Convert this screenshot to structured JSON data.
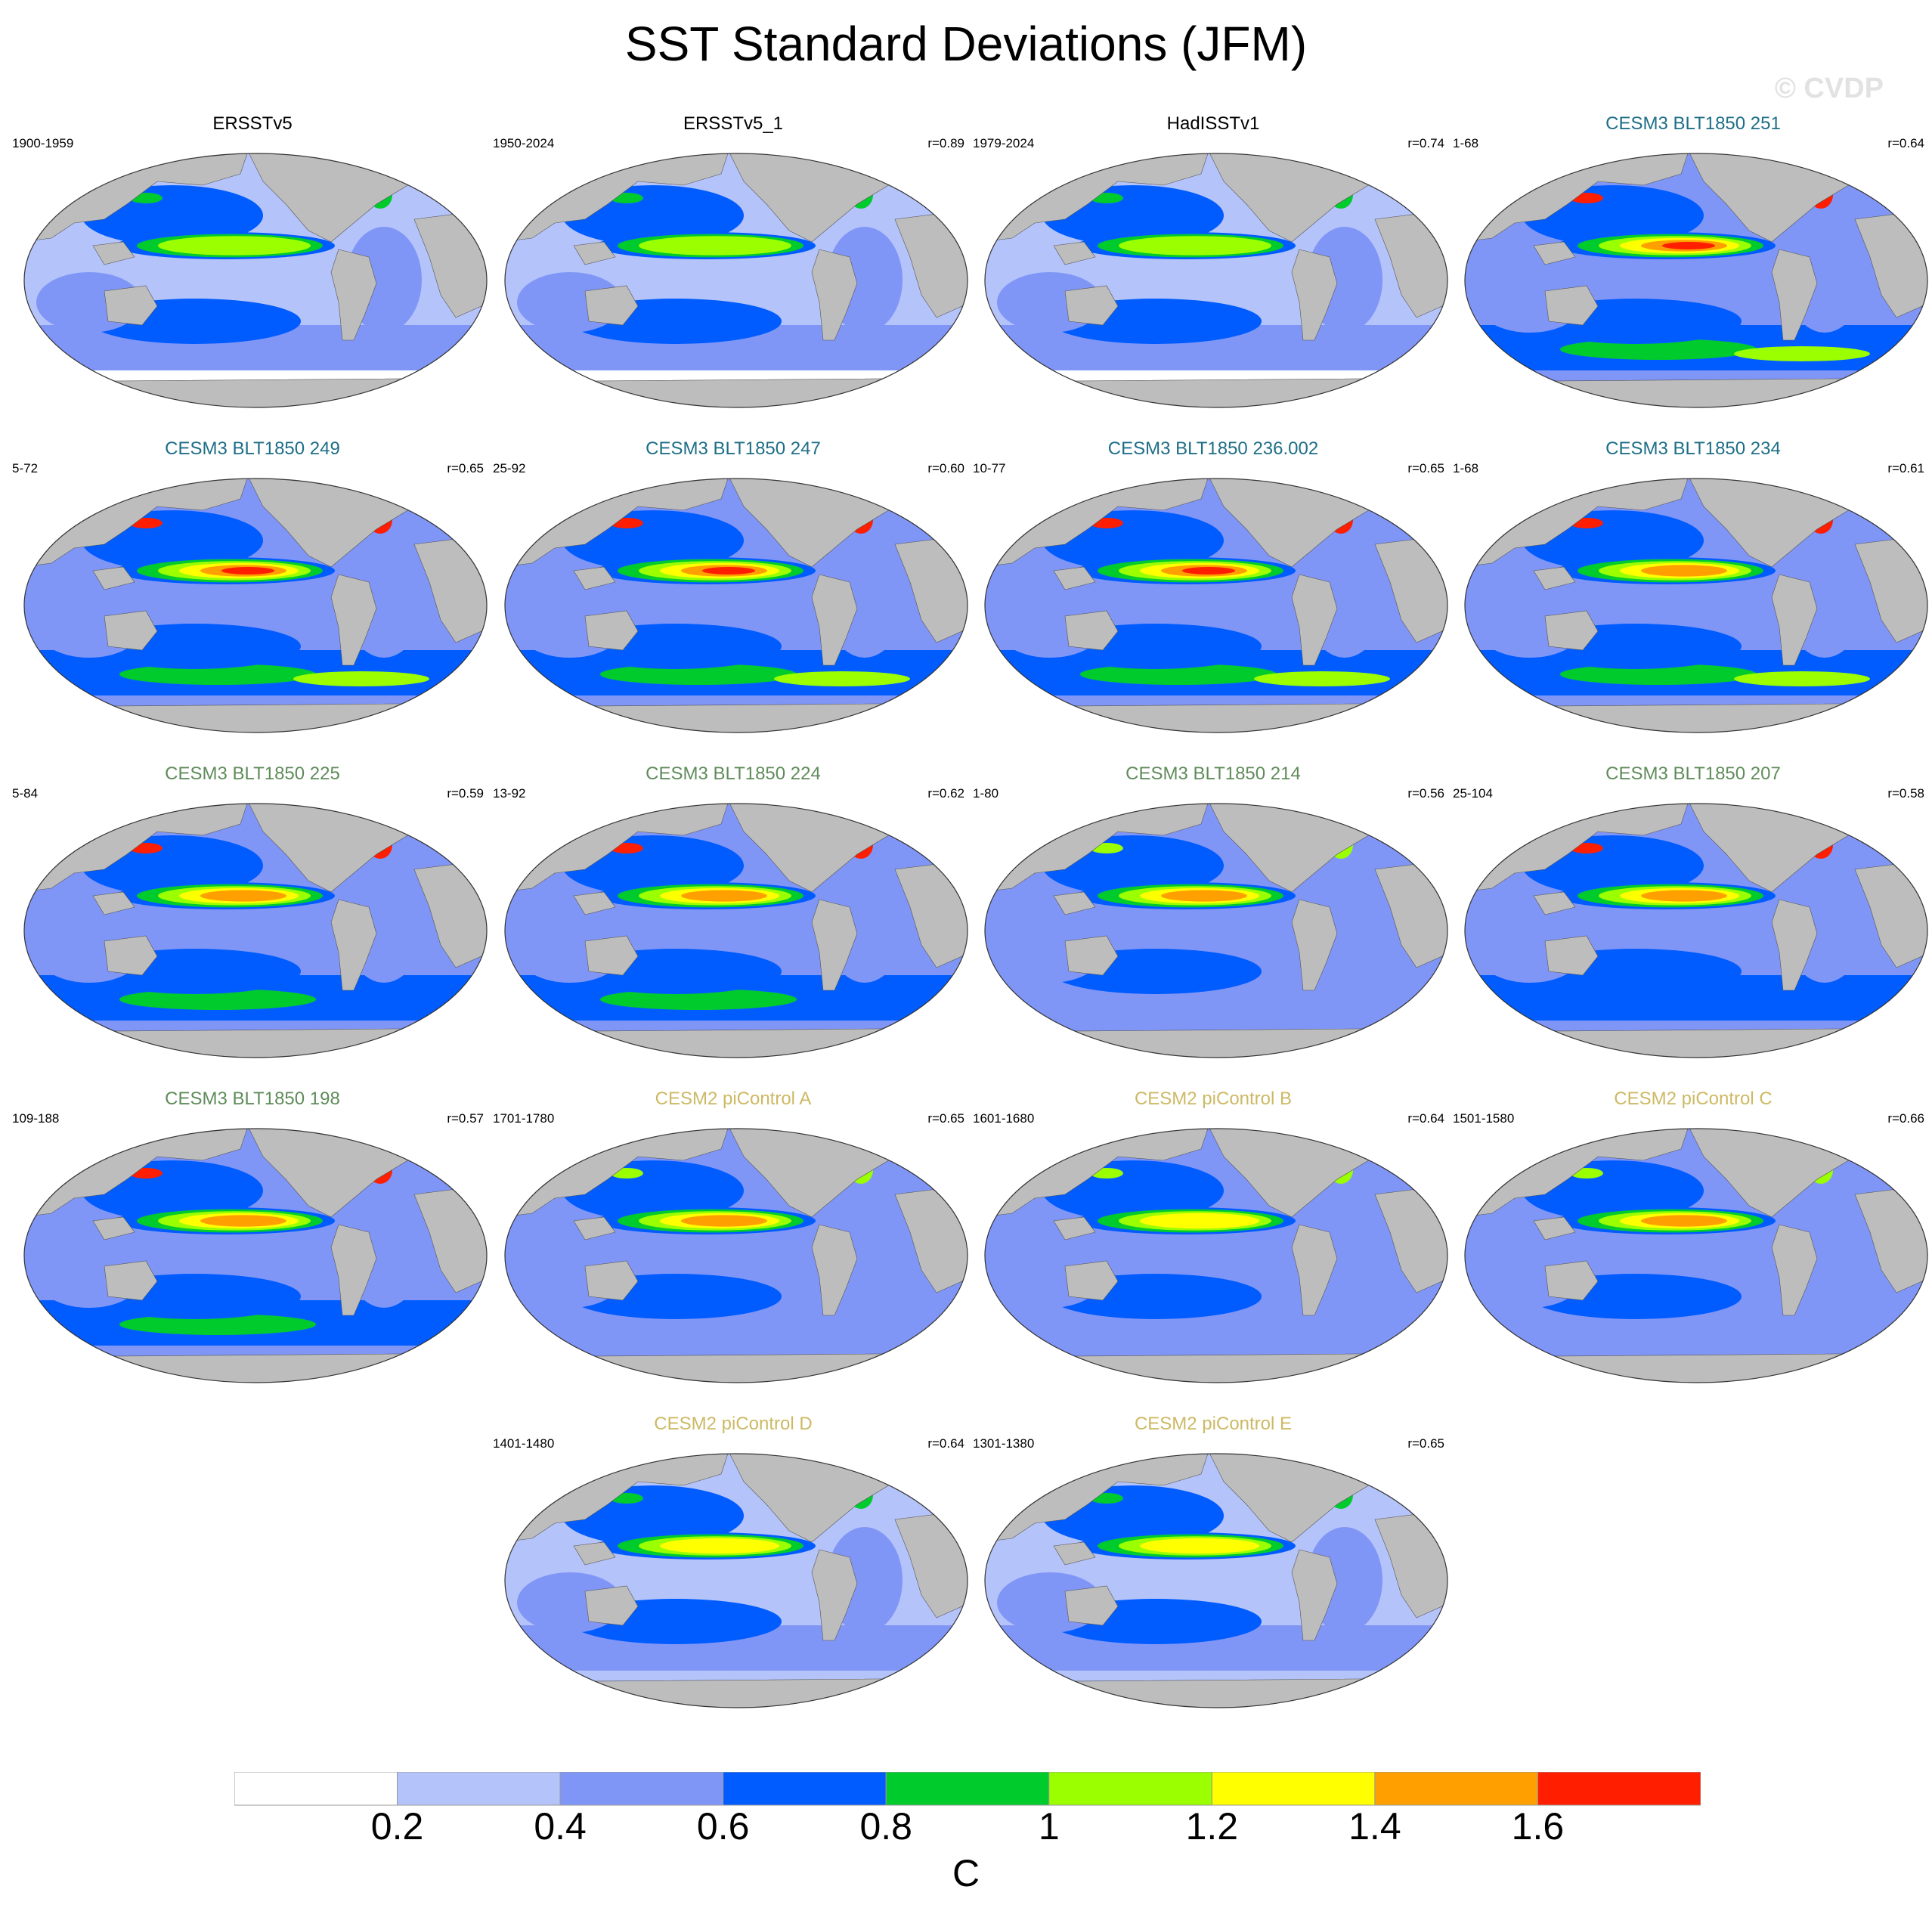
{
  "title": "SST Standard Deviations (JFM)",
  "watermark": "© CVDP",
  "colors": {
    "land": "#bdbdbd",
    "levels": [
      "#ffffff",
      "#b4c3fa",
      "#8096f7",
      "#005cff",
      "#00cb2d",
      "#9bff00",
      "#ffff00",
      "#ffa000",
      "#ff1e00"
    ],
    "title_black": "#000000",
    "title_teal": "#1e6e87",
    "title_green": "#5f8c5a",
    "title_gold": "#cdb964"
  },
  "panels": [
    {
      "title": "ERSSTv5",
      "period": "1900-1959",
      "corr": "",
      "title_color": "#000000",
      "variability": 0.55
    },
    {
      "title": "ERSSTv5_1",
      "period": "1950-2024",
      "corr": "r=0.89",
      "title_color": "#000000",
      "variability": 0.45
    },
    {
      "title": "HadISSTv1",
      "period": "1979-2024",
      "corr": "r=0.74",
      "title_color": "#000000",
      "variability": 0.42
    },
    {
      "title": "CESM3 BLT1850 251",
      "period": "1-68",
      "corr": "r=0.64",
      "title_color": "#1e6e87",
      "variability": 0.9
    },
    {
      "title": "CESM3 BLT1850 249",
      "period": "5-72",
      "corr": "r=0.65",
      "title_color": "#1e6e87",
      "variability": 0.88
    },
    {
      "title": "CESM3 BLT1850 247",
      "period": "25-92",
      "corr": "r=0.60",
      "title_color": "#1e6e87",
      "variability": 0.9
    },
    {
      "title": "CESM3 BLT1850 236.002",
      "period": "10-77",
      "corr": "r=0.65",
      "title_color": "#1e6e87",
      "variability": 0.88
    },
    {
      "title": "CESM3 BLT1850 234",
      "period": "1-68",
      "corr": "r=0.61",
      "title_color": "#1e6e87",
      "variability": 0.86
    },
    {
      "title": "CESM3 BLT1850 225",
      "period": "5-84",
      "corr": "r=0.59",
      "title_color": "#5f8c5a",
      "variability": 0.82
    },
    {
      "title": "CESM3 BLT1850 224",
      "period": "13-92",
      "corr": "r=0.62",
      "title_color": "#5f8c5a",
      "variability": 0.84
    },
    {
      "title": "CESM3 BLT1850 214",
      "period": "1-80",
      "corr": "r=0.56",
      "title_color": "#5f8c5a",
      "variability": 0.75
    },
    {
      "title": "CESM3 BLT1850 207",
      "period": "25-104",
      "corr": "r=0.58",
      "title_color": "#5f8c5a",
      "variability": 0.78
    },
    {
      "title": "CESM3 BLT1850 198",
      "period": "109-188",
      "corr": "r=0.57",
      "title_color": "#5f8c5a",
      "variability": 0.8
    },
    {
      "title": "CESM2 piControl A",
      "period": "1701-1780",
      "corr": "r=0.65",
      "title_color": "#cdb964",
      "variability": 0.72
    },
    {
      "title": "CESM2 piControl B",
      "period": "1601-1680",
      "corr": "r=0.64",
      "title_color": "#cdb964",
      "variability": 0.7
    },
    {
      "title": "CESM2 piControl C",
      "period": "1501-1580",
      "corr": "r=0.66",
      "title_color": "#cdb964",
      "variability": 0.72
    },
    {
      "title": "CESM2 piControl D",
      "period": "1401-1480",
      "corr": "r=0.64",
      "title_color": "#cdb964",
      "variability": 0.6
    },
    {
      "title": "CESM2 piControl E",
      "period": "1301-1380",
      "corr": "r=0.65",
      "title_color": "#cdb964",
      "variability": 0.6
    }
  ],
  "colorbar": {
    "labels": [
      "0.2",
      "0.4",
      "0.6",
      "0.8",
      "1",
      "1.2",
      "1.4",
      "1.6"
    ],
    "units": "C"
  }
}
